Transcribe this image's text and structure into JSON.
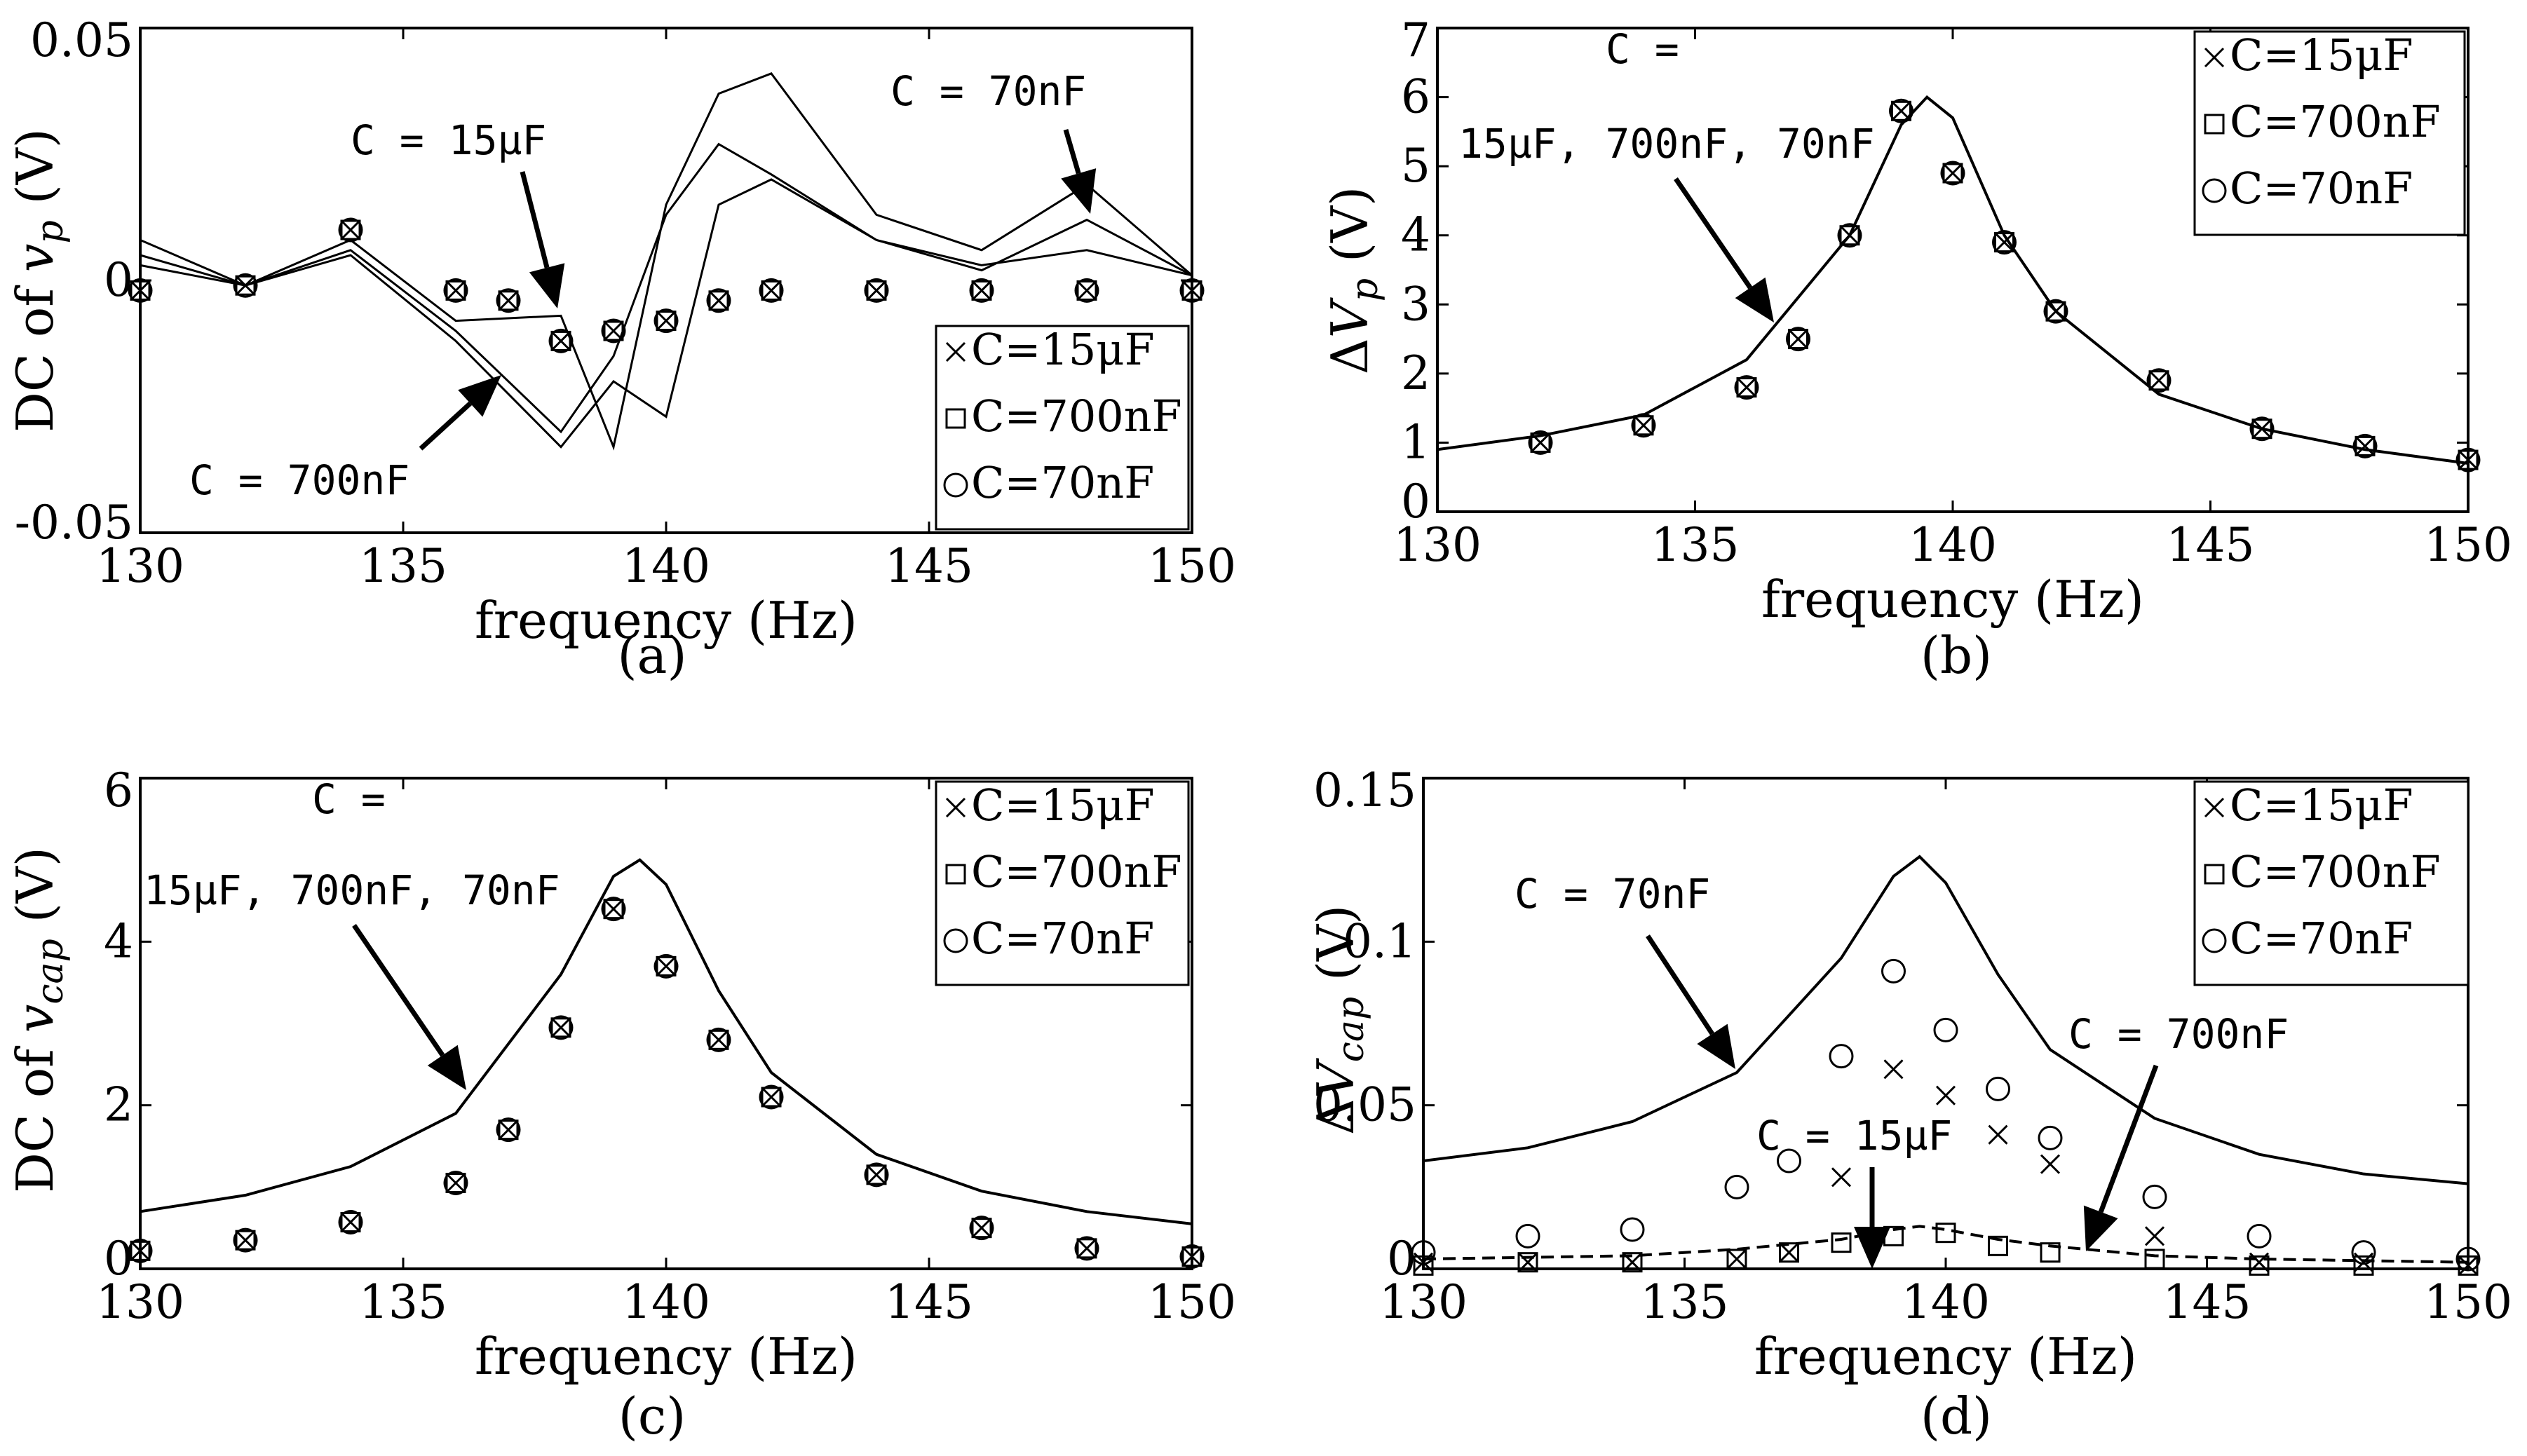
{
  "chart_data": [
    {
      "type": "line",
      "panel": "(a)",
      "xlabel": "frequency (Hz)",
      "ylabel": "DC of v_p (V)",
      "xlim": [
        130,
        150
      ],
      "ylim": [
        -0.05,
        0.05
      ],
      "xticks": [
        "130",
        "135",
        "140",
        "145",
        "150"
      ],
      "yticks": [
        "-0.05",
        "0",
        "0.05"
      ],
      "lines": [
        {
          "x": [
            130,
            132,
            134,
            136,
            138,
            139,
            140,
            141,
            142,
            144,
            146,
            148,
            150
          ],
          "y": [
            0.008,
            -0.001,
            0.008,
            -0.008,
            -0.007,
            -0.033,
            0.015,
            0.037,
            0.041,
            0.013,
            0.006,
            0.019,
            0.001
          ]
        },
        {
          "x": [
            130,
            132,
            134,
            136,
            138,
            139,
            140,
            141,
            142,
            144,
            146,
            148,
            150
          ],
          "y": [
            0.005,
            -0.001,
            0.006,
            -0.01,
            -0.03,
            -0.015,
            0.013,
            0.027,
            0.021,
            0.008,
            0.002,
            0.012,
            0.001
          ]
        },
        {
          "x": [
            130,
            132,
            134,
            136,
            138,
            139,
            140,
            141,
            142,
            144,
            146,
            148,
            150
          ],
          "y": [
            0.003,
            -0.001,
            0.005,
            -0.012,
            -0.033,
            -0.02,
            -0.027,
            0.015,
            0.02,
            0.008,
            0.003,
            0.006,
            0.001
          ]
        }
      ],
      "markers": {
        "x": [
          130,
          132,
          134,
          136,
          137,
          138,
          139,
          140,
          141,
          142,
          144,
          146,
          148,
          150
        ],
        "y": [
          -0.002,
          -0.001,
          0.01,
          -0.002,
          -0.004,
          -0.012,
          -0.01,
          -0.008,
          -0.004,
          -0.002,
          -0.002,
          -0.002,
          -0.002,
          -0.002
        ]
      },
      "legend": [
        "C=15μF",
        "C=700nF",
        "C=70nF"
      ],
      "legend_position": "bottom-right",
      "annotations": [
        {
          "text": "C = 15μF"
        },
        {
          "text": "C = 70nF"
        },
        {
          "text": "C = 700nF"
        }
      ]
    },
    {
      "type": "line",
      "panel": "(b)",
      "xlabel": "frequency (Hz)",
      "ylabel": "ΔV_p (V)",
      "xlim": [
        130,
        150
      ],
      "ylim": [
        0,
        7
      ],
      "xticks": [
        "130",
        "135",
        "140",
        "145",
        "150"
      ],
      "yticks": [
        "0",
        "1",
        "2",
        "3",
        "4",
        "5",
        "6",
        "7"
      ],
      "lines": [
        {
          "x": [
            130,
            132,
            134,
            136,
            138,
            139,
            139.5,
            140,
            141,
            142,
            144,
            146,
            148,
            150
          ],
          "y": [
            0.9,
            1.1,
            1.4,
            2.2,
            4.0,
            5.6,
            6.0,
            5.7,
            4.0,
            2.9,
            1.7,
            1.2,
            0.9,
            0.7
          ]
        }
      ],
      "markers": {
        "x": [
          132,
          134,
          136,
          137,
          138,
          139,
          140,
          141,
          142,
          144,
          146,
          148,
          150
        ],
        "y": [
          1.0,
          1.25,
          1.8,
          2.5,
          4.0,
          5.8,
          4.9,
          3.9,
          2.9,
          1.9,
          1.2,
          0.95,
          0.75
        ]
      },
      "legend": [
        "C=15μF",
        "C=700nF",
        "C=70nF"
      ],
      "legend_position": "top-right",
      "annotations": [
        {
          "text": "C ="
        },
        {
          "text": "15μF, 700nF, 70nF"
        }
      ]
    },
    {
      "type": "line",
      "panel": "(c)",
      "xlabel": "frequency (Hz)",
      "ylabel": "DC of v_cap (V)",
      "xlim": [
        130,
        150
      ],
      "ylim": [
        0,
        6
      ],
      "xticks": [
        "130",
        "135",
        "140",
        "145",
        "150"
      ],
      "yticks": [
        "0",
        "2",
        "4",
        "6"
      ],
      "lines": [
        {
          "x": [
            130,
            132,
            134,
            136,
            138,
            139,
            139.5,
            140,
            141,
            142,
            144,
            146,
            148,
            150
          ],
          "y": [
            0.7,
            0.9,
            1.25,
            1.9,
            3.6,
            4.8,
            5.0,
            4.7,
            3.4,
            2.4,
            1.4,
            0.95,
            0.7,
            0.55
          ]
        }
      ],
      "markers": {
        "x": [
          130,
          132,
          134,
          136,
          137,
          138,
          139,
          140,
          141,
          142,
          144,
          146,
          148,
          150
        ],
        "y": [
          0.22,
          0.35,
          0.57,
          1.05,
          1.7,
          2.95,
          4.4,
          3.7,
          2.8,
          2.1,
          1.15,
          0.5,
          0.25,
          0.15
        ]
      },
      "legend": [
        "C=15μF",
        "C=700nF",
        "C=70nF"
      ],
      "legend_position": "top-right",
      "annotations": [
        {
          "text": "C ="
        },
        {
          "text": "15μF, 700nF, 70nF"
        }
      ]
    },
    {
      "type": "line",
      "panel": "(d)",
      "xlabel": "frequency (Hz)",
      "ylabel": "ΔV_cap (V)",
      "xlim": [
        130,
        150
      ],
      "ylim": [
        0,
        0.15
      ],
      "xticks": [
        "130",
        "135",
        "140",
        "145",
        "150"
      ],
      "yticks": [
        "0",
        "0.05",
        "0.1",
        "0.15"
      ],
      "lines": [
        {
          "x": [
            130,
            132,
            134,
            136,
            138,
            139,
            139.5,
            140,
            141,
            142,
            144,
            146,
            148,
            150
          ],
          "y": [
            0.033,
            0.037,
            0.045,
            0.06,
            0.095,
            0.12,
            0.126,
            0.118,
            0.09,
            0.067,
            0.046,
            0.035,
            0.029,
            0.026
          ]
        },
        {
          "x": [
            130,
            134,
            136,
            138,
            139,
            139.5,
            140,
            141,
            142,
            144,
            146,
            150
          ],
          "y": [
            0.003,
            0.004,
            0.006,
            0.009,
            0.012,
            0.013,
            0.012,
            0.009,
            0.007,
            0.004,
            0.003,
            0.002
          ]
        }
      ],
      "markers_cross": {
        "x": [
          130,
          132,
          134,
          136,
          137,
          138,
          139,
          140,
          141,
          142,
          144,
          146,
          148,
          150
        ],
        "y": [
          0.002,
          0.002,
          0.002,
          0.003,
          0.005,
          0.028,
          0.061,
          0.053,
          0.041,
          0.032,
          0.01,
          0.002,
          0.002,
          0.001
        ]
      },
      "markers_square": {
        "x": [
          130,
          132,
          134,
          136,
          137,
          138,
          139,
          140,
          141,
          142,
          144,
          146,
          148,
          150
        ],
        "y": [
          0.001,
          0.002,
          0.002,
          0.003,
          0.005,
          0.008,
          0.01,
          0.011,
          0.007,
          0.005,
          0.003,
          0.001,
          0.001,
          0.001
        ]
      },
      "markers_circle": {
        "x": [
          130,
          132,
          134,
          136,
          137,
          138,
          139,
          140,
          141,
          142,
          144,
          146,
          148,
          150
        ],
        "y": [
          0.005,
          0.01,
          0.012,
          0.025,
          0.033,
          0.065,
          0.091,
          0.073,
          0.055,
          0.04,
          0.022,
          0.01,
          0.005,
          0.003
        ]
      },
      "legend": [
        "C=15μF",
        "C=700nF",
        "C=70nF"
      ],
      "legend_position": "top-right",
      "annotations": [
        {
          "text": "C = 70nF"
        },
        {
          "text": "C = 15μF"
        },
        {
          "text": "C = 700nF"
        }
      ]
    }
  ]
}
